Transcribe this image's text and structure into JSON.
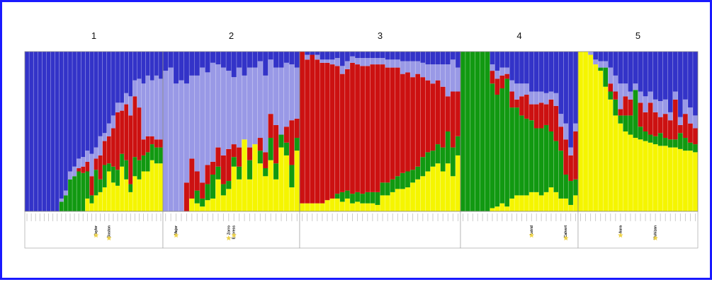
{
  "colors": {
    "blue": "#3333c8",
    "lavender": "#9999e6",
    "red": "#cc1111",
    "green": "#119911",
    "yellow": "#f5f500",
    "star": "#eed34a",
    "frame": "#1a1aff"
  },
  "chart_data": {
    "type": "bar",
    "stacked": true,
    "normalized": true,
    "ylim": [
      0,
      1
    ],
    "grid": false,
    "series_order_bottom_to_top": [
      "yellow",
      "green",
      "red",
      "lavender",
      "blue"
    ],
    "panels": [
      {
        "title": "1",
        "highlighted": [
          {
            "index": 16,
            "label": "Taylor"
          },
          {
            "index": 19,
            "label": "Boston"
          }
        ],
        "bars": [
          [
            0,
            0,
            0,
            0,
            1
          ],
          [
            0,
            0,
            0,
            0,
            1
          ],
          [
            0,
            0,
            0,
            0,
            1
          ],
          [
            0,
            0,
            0,
            0,
            1
          ],
          [
            0,
            0,
            0,
            0,
            1
          ],
          [
            0,
            0,
            0,
            0,
            1
          ],
          [
            0,
            0,
            0,
            0,
            1
          ],
          [
            0,
            0,
            0,
            0,
            1
          ],
          [
            0,
            0.06,
            0,
            0.02,
            0.92
          ],
          [
            0,
            0.1,
            0,
            0.03,
            0.87
          ],
          [
            0,
            0.2,
            0,
            0.05,
            0.75
          ],
          [
            0,
            0.22,
            0,
            0.06,
            0.72
          ],
          [
            0,
            0.25,
            0.02,
            0.06,
            0.67
          ],
          [
            0,
            0.24,
            0.04,
            0.06,
            0.66
          ],
          [
            0.08,
            0.17,
            0.06,
            0.07,
            0.62
          ],
          [
            0.05,
            0.05,
            0.12,
            0.14,
            0.64
          ],
          [
            0.1,
            0.16,
            0.07,
            0.07,
            0.6
          ],
          [
            0.12,
            0.08,
            0.15,
            0.12,
            0.53
          ],
          [
            0.15,
            0.14,
            0.15,
            0.05,
            0.51
          ],
          [
            0.25,
            0.05,
            0.17,
            0.08,
            0.45
          ],
          [
            0.18,
            0.1,
            0.24,
            0.08,
            0.4
          ],
          [
            0.16,
            0.1,
            0.36,
            0.06,
            0.32
          ],
          [
            0.28,
            0.08,
            0.27,
            0.05,
            0.32
          ],
          [
            0.2,
            0.12,
            0.35,
            0.07,
            0.26
          ],
          [
            0.12,
            0.05,
            0.43,
            0.12,
            0.28
          ],
          [
            0.22,
            0.12,
            0.38,
            0.1,
            0.18
          ],
          [
            0.2,
            0.12,
            0.33,
            0.18,
            0.17
          ],
          [
            0.25,
            0.1,
            0.1,
            0.35,
            0.2
          ],
          [
            0.25,
            0.12,
            0.1,
            0.38,
            0.15
          ],
          [
            0.32,
            0.1,
            0.05,
            0.35,
            0.18
          ],
          [
            0.3,
            0.1,
            0.05,
            0.4,
            0.15
          ],
          [
            0.3,
            0.1,
            0.05,
            0.38,
            0.17
          ]
        ]
      },
      {
        "title": "2",
        "highlighted": [
          {
            "index": 2,
            "label": "Major"
          },
          {
            "index": 12,
            "label": "Zorro"
          },
          {
            "index": 13,
            "label": "Express"
          }
        ],
        "bars": [
          [
            0,
            0,
            0,
            0.88,
            0.12
          ],
          [
            0,
            0,
            0,
            0.9,
            0.1
          ],
          [
            0,
            0,
            0,
            0.8,
            0.2
          ],
          [
            0,
            0,
            0,
            0.82,
            0.18
          ],
          [
            0,
            0,
            0.18,
            0.62,
            0.2
          ],
          [
            0.08,
            0,
            0.25,
            0.52,
            0.15
          ],
          [
            0.05,
            0.08,
            0.12,
            0.6,
            0.15
          ],
          [
            0.03,
            0.05,
            0.1,
            0.72,
            0.1
          ],
          [
            0.07,
            0.1,
            0.12,
            0.58,
            0.13
          ],
          [
            0.08,
            0.15,
            0.08,
            0.62,
            0.07
          ],
          [
            0.2,
            0.08,
            0.12,
            0.52,
            0.08
          ],
          [
            0.1,
            0.07,
            0.18,
            0.55,
            0.1
          ],
          [
            0.14,
            0.05,
            0.2,
            0.49,
            0.12
          ],
          [
            0.28,
            0.06,
            0.08,
            0.42,
            0.16
          ],
          [
            0.2,
            0.08,
            0.12,
            0.5,
            0.1
          ],
          [
            0.45,
            0,
            0,
            0.4,
            0.15
          ],
          [
            0.2,
            0.12,
            0.08,
            0.5,
            0.1
          ],
          [
            0.42,
            0,
            0,
            0.48,
            0.1
          ],
          [
            0.3,
            0.08,
            0.08,
            0.48,
            0.06
          ],
          [
            0.22,
            0.05,
            0.1,
            0.48,
            0.15
          ],
          [
            0.32,
            0.14,
            0.15,
            0.34,
            0.05
          ],
          [
            0.2,
            0.1,
            0.24,
            0.36,
            0.1
          ],
          [
            0.4,
            0.08,
            0,
            0.42,
            0.1
          ],
          [
            0.35,
            0.08,
            0.1,
            0.4,
            0.07
          ],
          [
            0.15,
            0.14,
            0.28,
            0.35,
            0.08
          ],
          [
            0.38,
            0.08,
            0.12,
            0.32,
            0.1
          ]
        ]
      },
      {
        "title": "3",
        "highlighted": [],
        "bars": [
          [
            0.05,
            0,
            0.95,
            0,
            0
          ],
          [
            0.05,
            0,
            0.9,
            0.03,
            0.02
          ],
          [
            0.05,
            0,
            0.93,
            0,
            0.02
          ],
          [
            0.05,
            0,
            0.9,
            0.03,
            0.02
          ],
          [
            0.05,
            0,
            0.88,
            0.02,
            0.05
          ],
          [
            0.07,
            0,
            0.86,
            0.02,
            0.05
          ],
          [
            0.08,
            0,
            0.84,
            0.03,
            0.05
          ],
          [
            0.08,
            0.03,
            0.8,
            0.05,
            0.04
          ],
          [
            0.06,
            0.06,
            0.74,
            0.05,
            0.09
          ],
          [
            0.08,
            0.05,
            0.76,
            0.05,
            0.06
          ],
          [
            0.05,
            0.06,
            0.82,
            0.04,
            0.03
          ],
          [
            0.06,
            0.06,
            0.8,
            0.04,
            0.04
          ],
          [
            0.05,
            0.06,
            0.8,
            0.05,
            0.04
          ],
          [
            0.05,
            0.07,
            0.79,
            0.05,
            0.04
          ],
          [
            0.05,
            0.07,
            0.8,
            0.04,
            0.04
          ],
          [
            0.04,
            0.08,
            0.8,
            0.04,
            0.04
          ],
          [
            0.1,
            0.08,
            0.74,
            0.04,
            0.04
          ],
          [
            0.1,
            0.08,
            0.72,
            0.05,
            0.05
          ],
          [
            0.12,
            0.08,
            0.7,
            0.05,
            0.05
          ],
          [
            0.14,
            0.08,
            0.68,
            0.05,
            0.05
          ],
          [
            0.14,
            0.1,
            0.62,
            0.08,
            0.06
          ],
          [
            0.15,
            0.1,
            0.62,
            0.07,
            0.06
          ],
          [
            0.18,
            0.08,
            0.58,
            0.1,
            0.06
          ],
          [
            0.2,
            0.08,
            0.58,
            0.08,
            0.06
          ],
          [
            0.22,
            0.12,
            0.5,
            0.09,
            0.07
          ],
          [
            0.25,
            0.12,
            0.45,
            0.1,
            0.08
          ],
          [
            0.28,
            0.1,
            0.42,
            0.12,
            0.08
          ],
          [
            0.3,
            0.12,
            0.4,
            0.1,
            0.08
          ],
          [
            0.25,
            0.15,
            0.38,
            0.14,
            0.08
          ],
          [
            0.3,
            0.2,
            0.22,
            0.2,
            0.08
          ],
          [
            0.22,
            0.18,
            0.35,
            0.2,
            0.05
          ],
          [
            0.35,
            0.12,
            0.28,
            0.15,
            0.1
          ]
        ]
      },
      {
        "title": "4",
        "highlighted": [
          {
            "index": 14,
            "label": "Astrid"
          },
          {
            "index": 21,
            "label": "Calvert"
          }
        ],
        "bars": [
          [
            0,
            1,
            0,
            0,
            0
          ],
          [
            0,
            1,
            0,
            0,
            0
          ],
          [
            0,
            1,
            0,
            0,
            0
          ],
          [
            0,
            1,
            0,
            0,
            0
          ],
          [
            0,
            1,
            0,
            0,
            0
          ],
          [
            0,
            1,
            0,
            0,
            0
          ],
          [
            0.02,
            0.78,
            0.08,
            0.04,
            0.08
          ],
          [
            0.03,
            0.7,
            0.1,
            0.05,
            0.12
          ],
          [
            0.05,
            0.72,
            0.08,
            0.05,
            0.1
          ],
          [
            0.03,
            0.8,
            0.03,
            0.04,
            0.1
          ],
          [
            0.08,
            0.57,
            0.1,
            0.07,
            0.18
          ],
          [
            0.1,
            0.55,
            0.05,
            0.1,
            0.2
          ],
          [
            0.1,
            0.5,
            0.12,
            0.08,
            0.2
          ],
          [
            0.1,
            0.48,
            0.15,
            0.07,
            0.2
          ],
          [
            0.12,
            0.45,
            0.1,
            0.08,
            0.25
          ],
          [
            0.12,
            0.4,
            0.15,
            0.08,
            0.25
          ],
          [
            0.1,
            0.42,
            0.16,
            0.07,
            0.25
          ],
          [
            0.12,
            0.42,
            0.13,
            0.07,
            0.26
          ],
          [
            0.15,
            0.35,
            0.2,
            0.05,
            0.25
          ],
          [
            0.12,
            0.32,
            0.22,
            0.08,
            0.26
          ],
          [
            0.08,
            0.3,
            0.15,
            0.08,
            0.39
          ],
          [
            0.08,
            0.15,
            0.22,
            0.1,
            0.45
          ],
          [
            0.04,
            0.15,
            0.16,
            0.05,
            0.6
          ],
          [
            0.1,
            0.1,
            0.3,
            0.05,
            0.45
          ]
        ]
      },
      {
        "title": "5",
        "highlighted": [
          {
            "index": 8,
            "label": "Aura"
          },
          {
            "index": 15,
            "label": "Muhizan"
          }
        ],
        "bars": [
          [
            1,
            0,
            0,
            0,
            0
          ],
          [
            1,
            0,
            0,
            0,
            0
          ],
          [
            0.98,
            0,
            0,
            0.02,
            0
          ],
          [
            0.92,
            0,
            0,
            0.03,
            0.05
          ],
          [
            0.88,
            0.02,
            0,
            0.04,
            0.06
          ],
          [
            0.78,
            0.12,
            0,
            0.04,
            0.06
          ],
          [
            0.7,
            0.05,
            0.05,
            0.1,
            0.1
          ],
          [
            0.6,
            0.1,
            0.05,
            0.1,
            0.15
          ],
          [
            0.55,
            0.05,
            0.04,
            0.16,
            0.2
          ],
          [
            0.5,
            0.1,
            0.12,
            0.08,
            0.2
          ],
          [
            0.48,
            0.12,
            0.1,
            0.05,
            0.25
          ],
          [
            0.46,
            0.3,
            0,
            0.04,
            0.2
          ],
          [
            0.45,
            0.08,
            0.15,
            0.07,
            0.25
          ],
          [
            0.44,
            0.06,
            0.12,
            0.1,
            0.28
          ],
          [
            0.43,
            0.05,
            0.2,
            0.07,
            0.25
          ],
          [
            0.42,
            0.05,
            0.15,
            0.08,
            0.3
          ],
          [
            0.41,
            0.08,
            0.1,
            0.1,
            0.31
          ],
          [
            0.41,
            0.05,
            0.15,
            0.09,
            0.3
          ],
          [
            0.4,
            0.05,
            0.12,
            0.05,
            0.38
          ],
          [
            0.4,
            0.05,
            0.25,
            0.05,
            0.25
          ],
          [
            0.39,
            0.1,
            0.05,
            0.05,
            0.41
          ],
          [
            0.38,
            0.08,
            0.15,
            0.09,
            0.3
          ],
          [
            0.38,
            0.05,
            0.12,
            0.1,
            0.35
          ],
          [
            0.37,
            0.05,
            0.1,
            0.08,
            0.4
          ]
        ]
      }
    ]
  }
}
